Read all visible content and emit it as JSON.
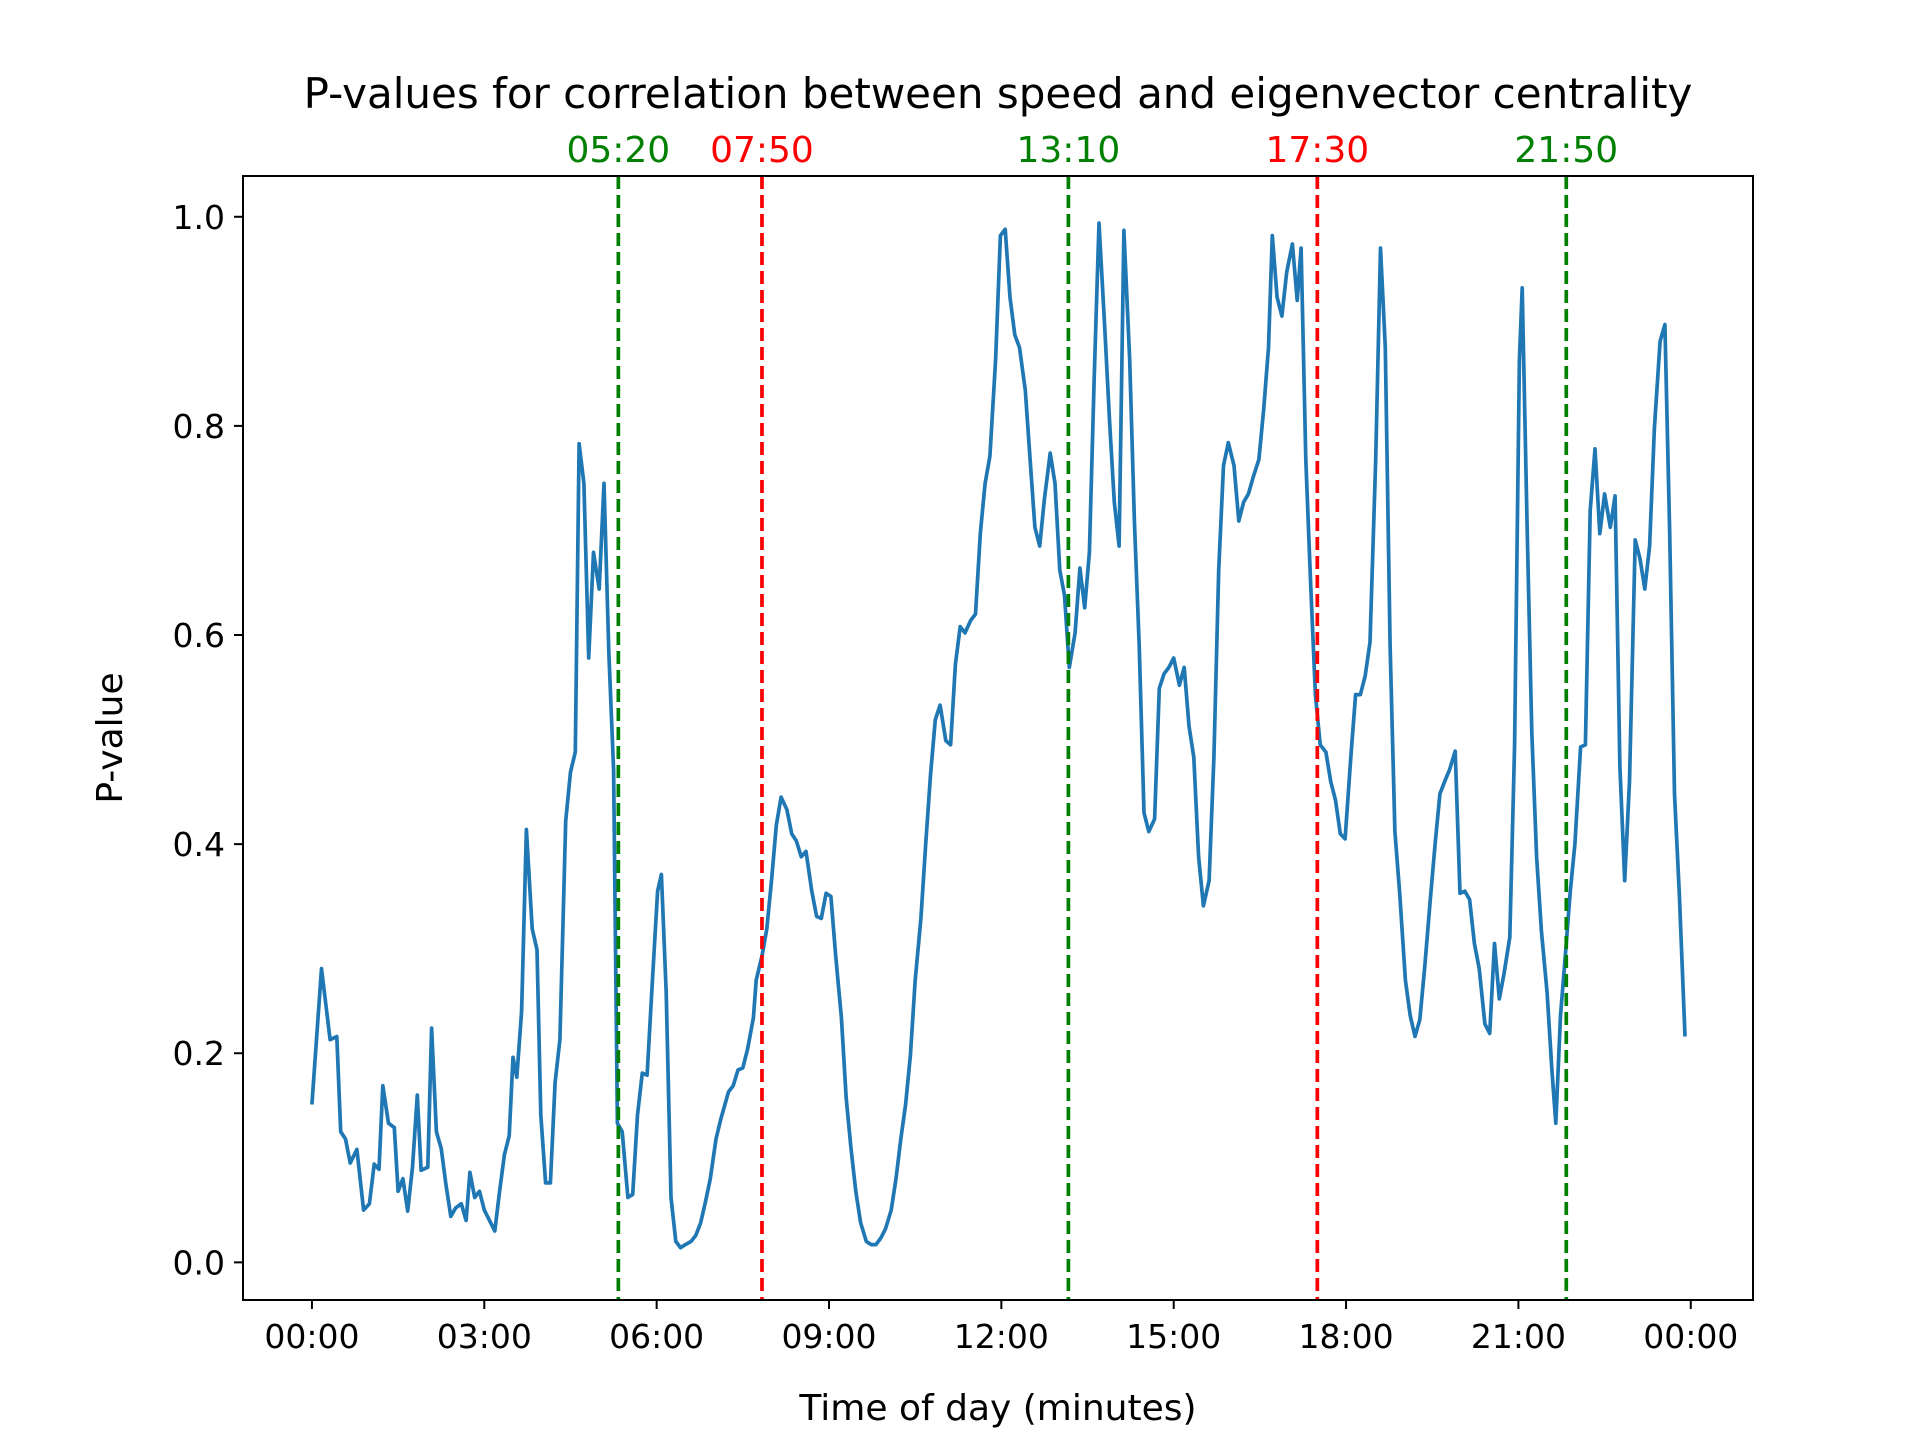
{
  "chart_data": {
    "type": "line",
    "title": "P-values for correlation between speed and eigenvector centrality",
    "xlabel": "Time of day (minutes)",
    "ylabel": "P-value",
    "color": "#1f77b4",
    "x": [
      0,
      10,
      19,
      26,
      30,
      35,
      40,
      47,
      54,
      60,
      65,
      70,
      74,
      80,
      86,
      90,
      95,
      100,
      105,
      110,
      114,
      121,
      125,
      130,
      135,
      140,
      145,
      150,
      156,
      161,
      165,
      170,
      175,
      180,
      191,
      196,
      201,
      206,
      210,
      214,
      219,
      224,
      230,
      235,
      239,
      244,
      249,
      254,
      259,
      265,
      270,
      275,
      279,
      284,
      289,
      294,
      300,
      305,
      310,
      315,
      319,
      324,
      330,
      335,
      340,
      345,
      350,
      355,
      361,
      365,
      370,
      375,
      380,
      385,
      390,
      396,
      401,
      406,
      411,
      416,
      422,
      427,
      435,
      440,
      445,
      450,
      455,
      461,
      464,
      470,
      475,
      480,
      485,
      490,
      496,
      501,
      506,
      511,
      516,
      522,
      527,
      532,
      537,
      542,
      547,
      553,
      558,
      563,
      568,
      573,
      579,
      584,
      589,
      594,
      599,
      605,
      610,
      615,
      620,
      625,
      630,
      636,
      641,
      646,
      651,
      656,
      662,
      667,
      672,
      677,
      682,
      688,
      693,
      698,
      703,
      708,
      714,
      719,
      724,
      729,
      734,
      739,
      745,
      750,
      755,
      760,
      765,
      771,
      776,
      781,
      786,
      791,
      797,
      802,
      807,
      812,
      817,
      822,
      828,
      833,
      838,
      843,
      848,
      854,
      859,
      864,
      869,
      874,
      880,
      885,
      890,
      895,
      900,
      906,
      911,
      916,
      921,
      926,
      931,
      937,
      942,
      947,
      952,
      957,
      963,
      968,
      973,
      978,
      983,
      989,
      994,
      999,
      1003,
      1008,
      1013,
      1018,
      1024,
      1029,
      1033,
      1038,
      1043,
      1048,
      1053,
      1059,
      1064,
      1069,
      1074,
      1079,
      1085,
      1090,
      1095,
      1100,
      1105,
      1111,
      1116,
      1121,
      1126,
      1131,
      1136,
      1142,
      1147,
      1152,
      1157,
      1162,
      1168,
      1173,
      1178,
      1183,
      1188,
      1194,
      1199,
      1204,
      1209,
      1214,
      1219,
      1225,
      1230,
      1235,
      1240,
      1245,
      1251,
      1256,
      1261,
      1264,
      1269,
      1274,
      1279,
      1284,
      1290,
      1295,
      1299,
      1304,
      1309,
      1314,
      1319,
      1325,
      1330,
      1335,
      1340,
      1345,
      1350,
      1356,
      1361,
      1366,
      1371,
      1376,
      1382,
      1387,
      1392,
      1397,
      1402,
      1408,
      1413,
      1418,
      1423,
      1428,
      1434
    ],
    "values": [
      0.151,
      0.281,
      0.213,
      0.216,
      0.125,
      0.118,
      0.095,
      0.108,
      0.05,
      0.056,
      0.094,
      0.089,
      0.169,
      0.133,
      0.129,
      0.068,
      0.08,
      0.049,
      0.091,
      0.16,
      0.088,
      0.091,
      0.224,
      0.125,
      0.109,
      0.074,
      0.044,
      0.052,
      0.056,
      0.04,
      0.086,
      0.062,
      0.068,
      0.05,
      0.03,
      0.068,
      0.103,
      0.121,
      0.196,
      0.177,
      0.24,
      0.414,
      0.319,
      0.299,
      0.141,
      0.076,
      0.076,
      0.172,
      0.213,
      0.422,
      0.469,
      0.488,
      0.783,
      0.745,
      0.578,
      0.679,
      0.644,
      0.745,
      0.584,
      0.471,
      0.133,
      0.125,
      0.062,
      0.065,
      0.141,
      0.181,
      0.179,
      0.261,
      0.355,
      0.371,
      0.258,
      0.062,
      0.02,
      0.014,
      0.017,
      0.02,
      0.026,
      0.038,
      0.058,
      0.08,
      0.118,
      0.137,
      0.163,
      0.169,
      0.184,
      0.186,
      0.204,
      0.234,
      0.27,
      0.293,
      0.319,
      0.365,
      0.418,
      0.445,
      0.433,
      0.41,
      0.403,
      0.388,
      0.393,
      0.355,
      0.331,
      0.329,
      0.353,
      0.35,
      0.293,
      0.234,
      0.157,
      0.109,
      0.068,
      0.038,
      0.02,
      0.017,
      0.017,
      0.023,
      0.032,
      0.05,
      0.08,
      0.118,
      0.151,
      0.198,
      0.27,
      0.329,
      0.4,
      0.466,
      0.519,
      0.533,
      0.499,
      0.495,
      0.572,
      0.608,
      0.602,
      0.614,
      0.62,
      0.697,
      0.745,
      0.771,
      0.863,
      0.982,
      0.988,
      0.923,
      0.887,
      0.875,
      0.834,
      0.768,
      0.703,
      0.685,
      0.73,
      0.774,
      0.745,
      0.662,
      0.638,
      0.569,
      0.602,
      0.664,
      0.626,
      0.679,
      0.846,
      0.994,
      0.893,
      0.804,
      0.727,
      0.685,
      0.987,
      0.863,
      0.709,
      0.59,
      0.43,
      0.412,
      0.424,
      0.549,
      0.563,
      0.569,
      0.578,
      0.552,
      0.569,
      0.513,
      0.483,
      0.388,
      0.341,
      0.365,
      0.483,
      0.662,
      0.762,
      0.784,
      0.762,
      0.709,
      0.727,
      0.735,
      0.751,
      0.768,
      0.816,
      0.875,
      0.982,
      0.923,
      0.905,
      0.947,
      0.974,
      0.92,
      0.97,
      0.768,
      0.65,
      0.543,
      0.495,
      0.488,
      0.46,
      0.442,
      0.41,
      0.405,
      0.483,
      0.543,
      0.543,
      0.561,
      0.593,
      0.768,
      0.97,
      0.875,
      0.59,
      0.412,
      0.353,
      0.27,
      0.236,
      0.216,
      0.232,
      0.281,
      0.347,
      0.4,
      0.448,
      0.46,
      0.471,
      0.489,
      0.353,
      0.355,
      0.347,
      0.305,
      0.281,
      0.228,
      0.219,
      0.305,
      0.252,
      0.276,
      0.311,
      0.495,
      0.863,
      0.932,
      0.709,
      0.507,
      0.388,
      0.317,
      0.258,
      0.184,
      0.133,
      0.236,
      0.293,
      0.353,
      0.4,
      0.493,
      0.495,
      0.719,
      0.778,
      0.697,
      0.735,
      0.703,
      0.733,
      0.474,
      0.365,
      0.46,
      0.691,
      0.673,
      0.644,
      0.685,
      0.798,
      0.881,
      0.897,
      0.697,
      0.448,
      0.353,
      0.216
    ],
    "xlim": [
      -72,
      1505
    ],
    "ylim": [
      -0.036,
      1.039
    ],
    "xticks": [
      {
        "value": 0,
        "label": "00:00"
      },
      {
        "value": 180,
        "label": "03:00"
      },
      {
        "value": 360,
        "label": "06:00"
      },
      {
        "value": 540,
        "label": "09:00"
      },
      {
        "value": 720,
        "label": "12:00"
      },
      {
        "value": 900,
        "label": "15:00"
      },
      {
        "value": 1080,
        "label": "18:00"
      },
      {
        "value": 1260,
        "label": "21:00"
      },
      {
        "value": 1440,
        "label": "00:00"
      }
    ],
    "yticks": [
      {
        "value": 0,
        "label": "0.0"
      },
      0.2,
      0.4,
      0.6,
      0.8,
      {
        "value": 1,
        "label": "1.0"
      }
    ],
    "vlines": [
      {
        "x": 320,
        "label": "05:20",
        "color": "green"
      },
      {
        "x": 470,
        "label": "07:50",
        "color": "red"
      },
      {
        "x": 790,
        "label": "13:10",
        "color": "green"
      },
      {
        "x": 1050,
        "label": "17:30",
        "color": "red"
      },
      {
        "x": 1310,
        "label": "21:50",
        "color": "green"
      }
    ],
    "vline_style": "dashed",
    "grid": false
  }
}
